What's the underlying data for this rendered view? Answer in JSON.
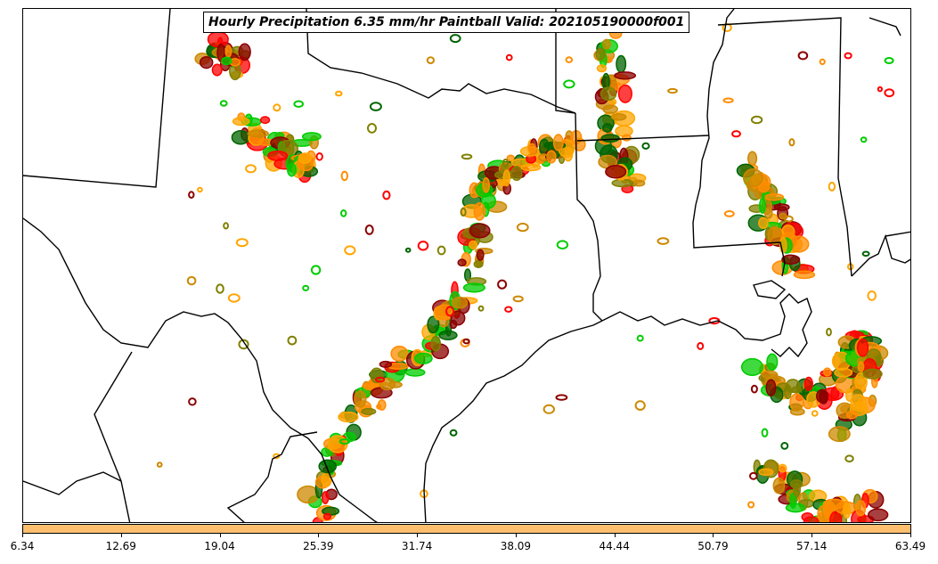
{
  "title": "Hourly Precipitation 6.35 mm/hr Paintball Valid: 202105190000f001",
  "colorbar": {
    "color": "#fdbf6f",
    "ticks": [
      "6.34",
      "12.69",
      "19.04",
      "25.39",
      "31.74",
      "38.09",
      "44.44",
      "50.79",
      "57.14",
      "63.49"
    ]
  },
  "palette": {
    "member_colors": [
      "#ff8c00",
      "#ff0000",
      "#8b0000",
      "#00cc00",
      "#006400",
      "#808000",
      "#cc8800",
      "#ffa500"
    ]
  }
}
